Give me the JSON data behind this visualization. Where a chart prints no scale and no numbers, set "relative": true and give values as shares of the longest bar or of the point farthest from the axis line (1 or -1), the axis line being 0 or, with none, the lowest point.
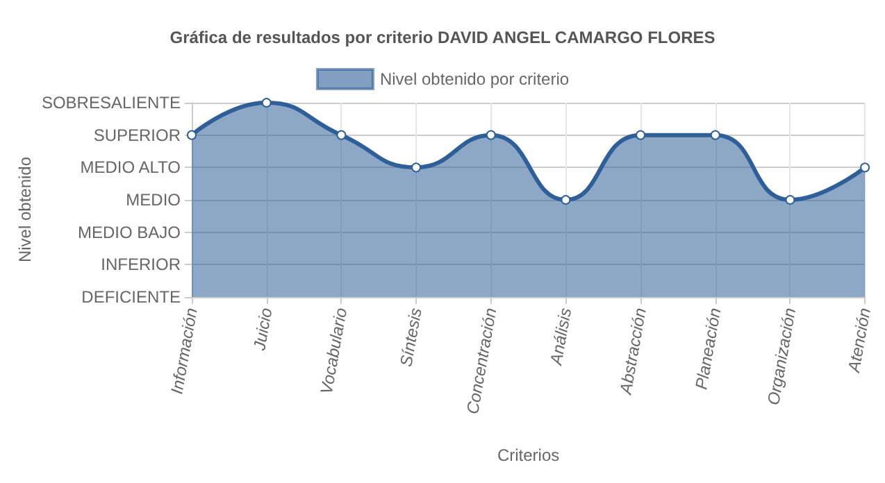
{
  "chart_data": {
    "type": "area",
    "title": "Gráfica de resultados por criterio DAVID ANGEL CAMARGO FLORES",
    "xlabel": "Criterios",
    "annotations": [
      "Nivel obtenido"
    ],
    "categories": [
      "Información",
      "Juicio",
      "Vocabulario",
      "Síntesis",
      "Concentración",
      "Análisis",
      "Abstracción",
      "Planeación",
      "Organización",
      "Atención"
    ],
    "y_categories": [
      "SOBRESALIENTE",
      "SUPERIOR",
      "MEDIO ALTO",
      "MEDIO",
      "MEDIO BAJO",
      "INFERIOR",
      "DEFICIENTE"
    ],
    "series": [
      {
        "name": "Nivel obtenido por criterio",
        "color": "#2f5f98",
        "values": [
          0.8333,
          1,
          0.8333,
          0.6667,
          0.8333,
          0.5,
          0.8333,
          0.8333,
          0.5,
          0.6667
        ]
      }
    ],
    "relative": true,
    "grid": true,
    "legend": "top",
    "marker": "circle",
    "line_style": "solid"
  }
}
